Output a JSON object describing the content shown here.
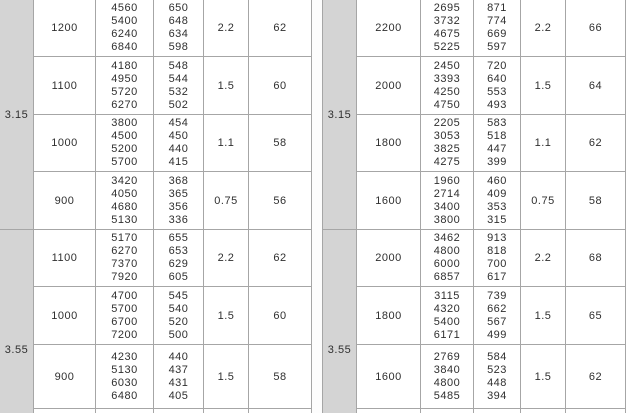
{
  "colors": {
    "size_column_bg": "#d4d4d4",
    "grid_border": "#a6a6a6",
    "text": "#2f2f2f",
    "background": "#ffffff"
  },
  "tables": [
    {
      "name": "left-spec-table",
      "sections": [
        {
          "size": "3.15",
          "groups": [
            {
              "speed": "1200",
              "flows": [
                "4560",
                "5400",
                "6240",
                "6840"
              ],
              "pressures": [
                "650",
                "648",
                "634",
                "598"
              ],
              "power": "2.2",
              "noise": "62"
            },
            {
              "speed": "1100",
              "flows": [
                "4180",
                "4950",
                "5720",
                "6270"
              ],
              "pressures": [
                "548",
                "544",
                "532",
                "502"
              ],
              "power": "1.5",
              "noise": "60"
            },
            {
              "speed": "1000",
              "flows": [
                "3800",
                "4500",
                "5200",
                "5700"
              ],
              "pressures": [
                "454",
                "450",
                "440",
                "415"
              ],
              "power": "1.1",
              "noise": "58"
            },
            {
              "speed": "900",
              "flows": [
                "3420",
                "4050",
                "4680",
                "5130"
              ],
              "pressures": [
                "368",
                "365",
                "356",
                "336"
              ],
              "power": "0.75",
              "noise": "56"
            }
          ]
        },
        {
          "size": "3.55",
          "groups": [
            {
              "speed": "1100",
              "flows": [
                "5170",
                "6270",
                "7370",
                "7920"
              ],
              "pressures": [
                "655",
                "653",
                "629",
                "605"
              ],
              "power": "2.2",
              "noise": "62"
            },
            {
              "speed": "1000",
              "flows": [
                "4700",
                "5700",
                "6700",
                "7200"
              ],
              "pressures": [
                "545",
                "540",
                "520",
                "500"
              ],
              "power": "1.5",
              "noise": "60"
            },
            {
              "speed": "900",
              "flows": [
                "4230",
                "5130",
                "6030",
                "6480"
              ],
              "pressures": [
                "440",
                "437",
                "431",
                "405"
              ],
              "power": "1.5",
              "noise": "58"
            }
          ]
        }
      ]
    },
    {
      "name": "right-spec-table",
      "sections": [
        {
          "size": "3.15",
          "groups": [
            {
              "speed": "2200",
              "flows": [
                "2695",
                "3732",
                "4675",
                "5225"
              ],
              "pressures": [
                "871",
                "774",
                "669",
                "597"
              ],
              "power": "2.2",
              "noise": "66"
            },
            {
              "speed": "2000",
              "flows": [
                "2450",
                "3393",
                "4250",
                "4750"
              ],
              "pressures": [
                "720",
                "640",
                "553",
                "493"
              ],
              "power": "1.5",
              "noise": "64"
            },
            {
              "speed": "1800",
              "flows": [
                "2205",
                "3053",
                "3825",
                "4275"
              ],
              "pressures": [
                "583",
                "518",
                "447",
                "399"
              ],
              "power": "1.1",
              "noise": "62"
            },
            {
              "speed": "1600",
              "flows": [
                "1960",
                "2714",
                "3400",
                "3800"
              ],
              "pressures": [
                "460",
                "409",
                "353",
                "315"
              ],
              "power": "0.75",
              "noise": "58"
            }
          ]
        },
        {
          "size": "3.55",
          "groups": [
            {
              "speed": "2000",
              "flows": [
                "3462",
                "4800",
                "6000",
                "6857"
              ],
              "pressures": [
                "913",
                "818",
                "700",
                "617"
              ],
              "power": "2.2",
              "noise": "68"
            },
            {
              "speed": "1800",
              "flows": [
                "3115",
                "4320",
                "5400",
                "6171"
              ],
              "pressures": [
                "739",
                "662",
                "567",
                "499"
              ],
              "power": "1.5",
              "noise": "65"
            },
            {
              "speed": "1600",
              "flows": [
                "2769",
                "3840",
                "4800",
                "5485"
              ],
              "pressures": [
                "584",
                "523",
                "448",
                "394"
              ],
              "power": "1.5",
              "noise": "62"
            }
          ]
        }
      ]
    }
  ]
}
